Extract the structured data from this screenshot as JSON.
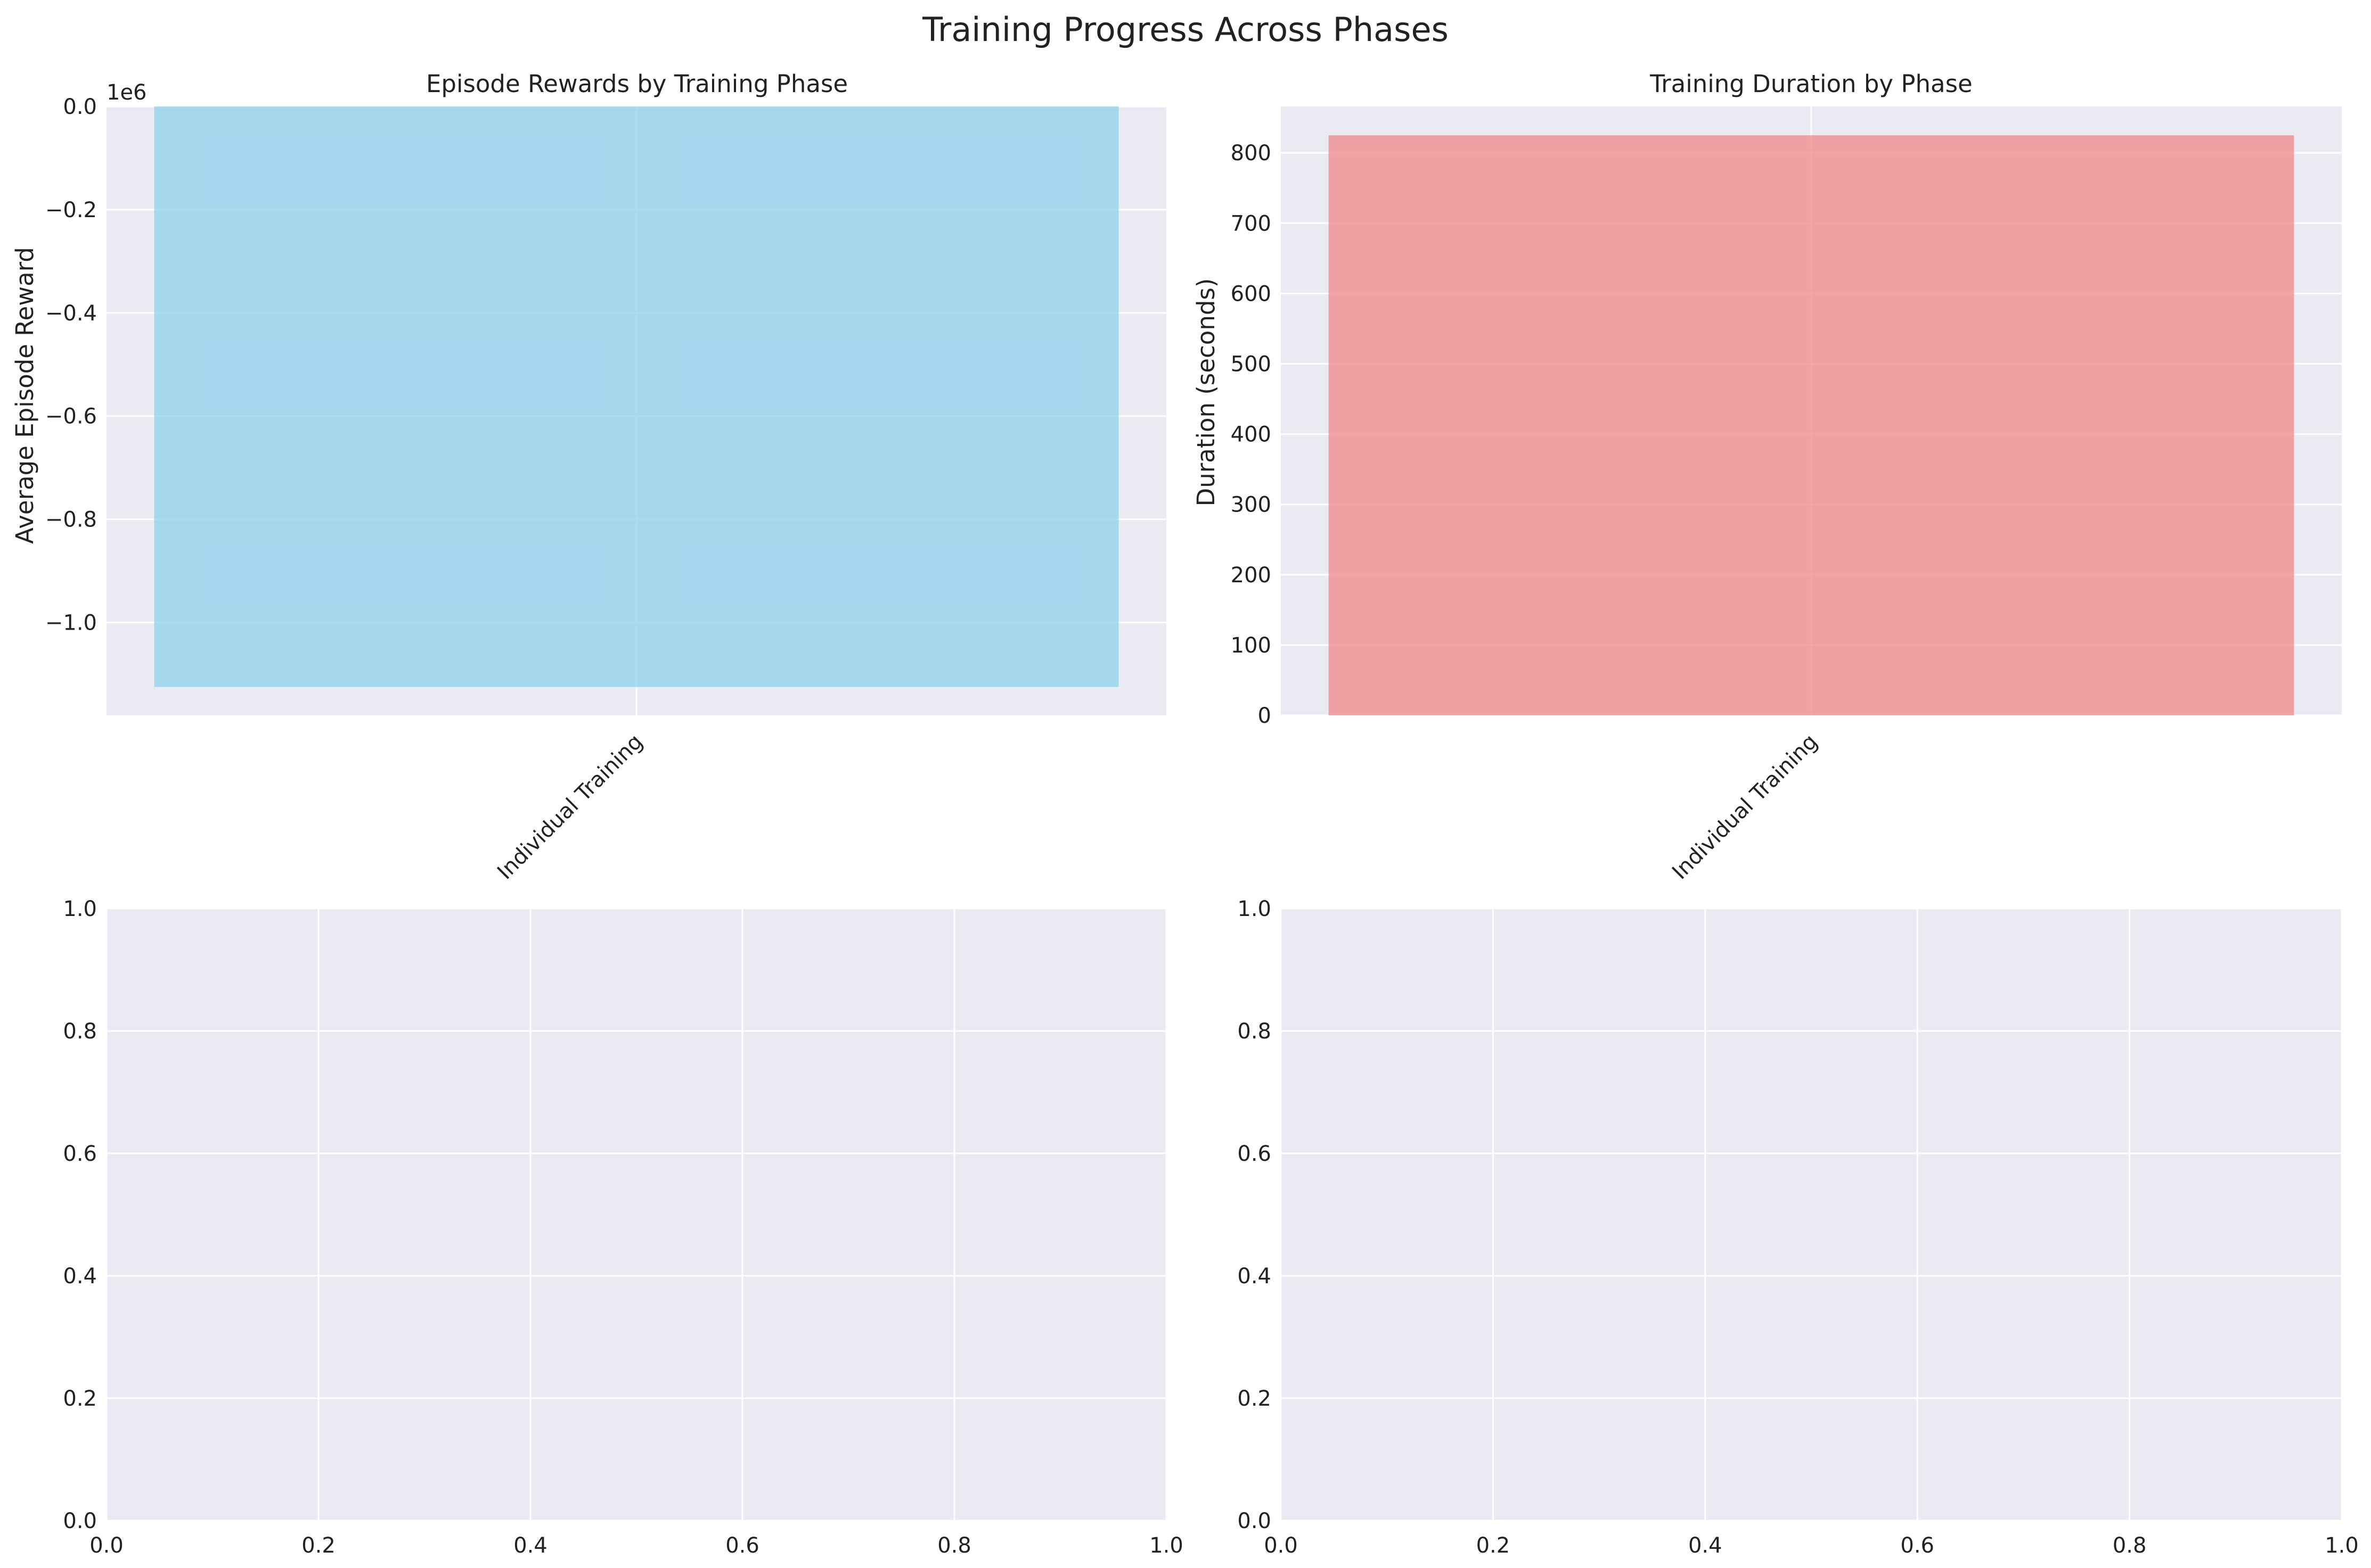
{
  "figure": {
    "title": "Training Progress Across Phases"
  },
  "chart_data": [
    {
      "type": "bar",
      "title": "Episode Rewards by Training Phase",
      "xlabel": "",
      "ylabel": "Average Episode Reward",
      "categories": [
        "Individual Training"
      ],
      "values": [
        -1125000
      ],
      "ylim": [
        -1180000,
        0
      ],
      "yticks": [
        0,
        -200000,
        -400000,
        -600000,
        -800000,
        -1000000
      ],
      "ytick_labels": [
        "0.0",
        "−0.2",
        "−0.4",
        "−0.6",
        "−0.8",
        "−1.0"
      ],
      "y_offset_label": "1e6",
      "color": "#87ceeb",
      "grid": true
    },
    {
      "type": "bar",
      "title": "Training Duration by Phase",
      "xlabel": "",
      "ylabel": "Duration (seconds)",
      "categories": [
        "Individual Training"
      ],
      "values": [
        825
      ],
      "ylim": [
        0,
        866
      ],
      "yticks": [
        0,
        100,
        200,
        300,
        400,
        500,
        600,
        700,
        800
      ],
      "ytick_labels": [
        "0",
        "100",
        "200",
        "300",
        "400",
        "500",
        "600",
        "700",
        "800"
      ],
      "color": "#f08080",
      "grid": true
    },
    {
      "type": "empty",
      "title": "",
      "xlim": [
        0,
        1
      ],
      "ylim": [
        0,
        1
      ],
      "xtick_labels": [
        "0.0",
        "0.2",
        "0.4",
        "0.6",
        "0.8",
        "1.0"
      ],
      "ytick_labels": [
        "0.0",
        "0.2",
        "0.4",
        "0.6",
        "0.8",
        "1.0"
      ],
      "grid": true
    },
    {
      "type": "empty",
      "title": "",
      "xlim": [
        0,
        1
      ],
      "ylim": [
        0,
        1
      ],
      "xtick_labels": [
        "0.0",
        "0.2",
        "0.4",
        "0.6",
        "0.8",
        "1.0"
      ],
      "ytick_labels": [
        "0.0",
        "0.2",
        "0.4",
        "0.6",
        "0.8",
        "1.0"
      ],
      "grid": true
    }
  ],
  "style": {
    "axes_background": "#eaeaf2",
    "grid_color": "#ffffff",
    "text_color": "#222222"
  }
}
